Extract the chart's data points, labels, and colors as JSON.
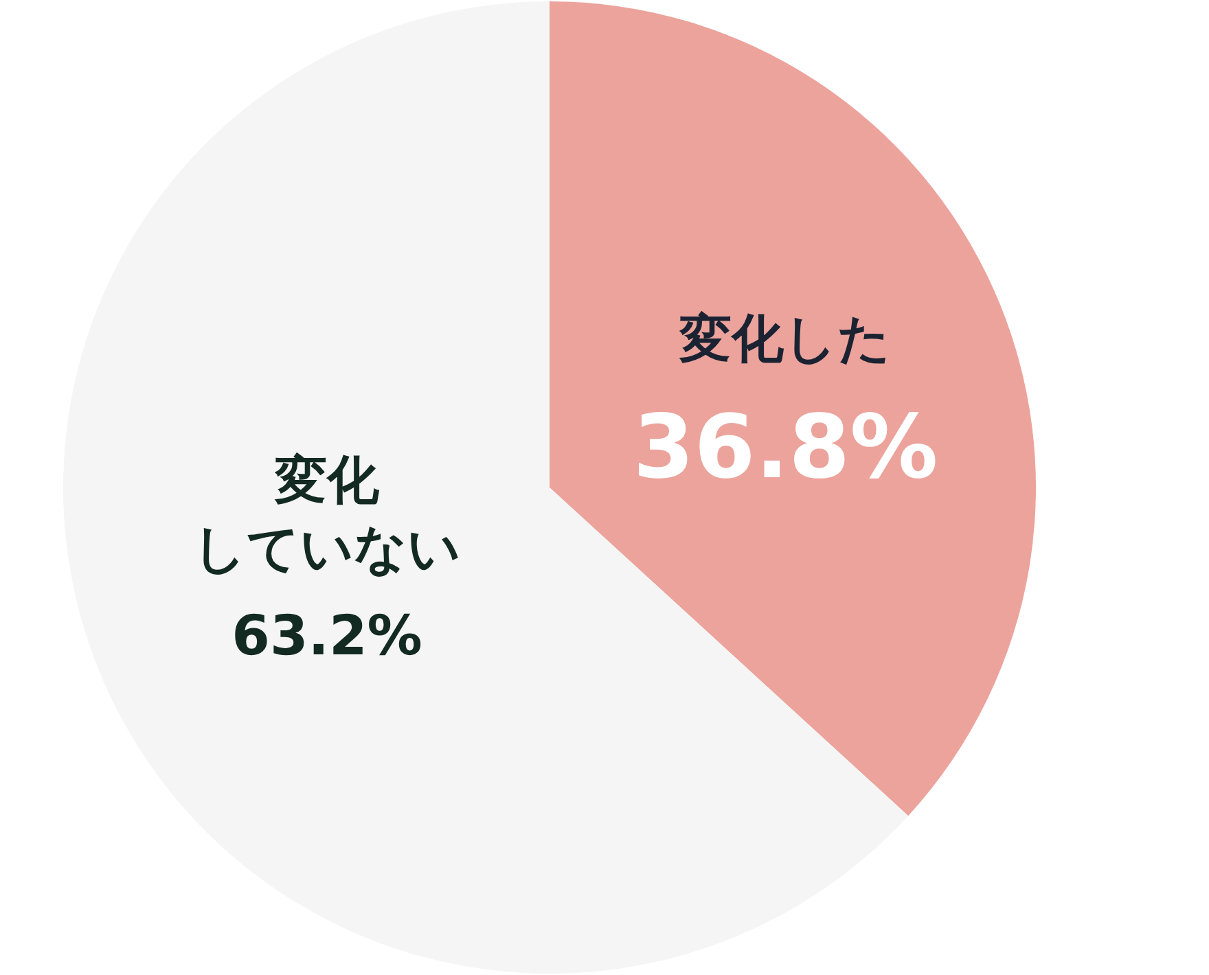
{
  "chart_data": {
    "type": "pie",
    "categories": [
      "変化した",
      "変化していない"
    ],
    "values": [
      36.8,
      63.2
    ],
    "value_labels": [
      "36.8%",
      "63.2%"
    ],
    "colors": [
      "#eca39c",
      "#f5f5f5"
    ]
  }
}
